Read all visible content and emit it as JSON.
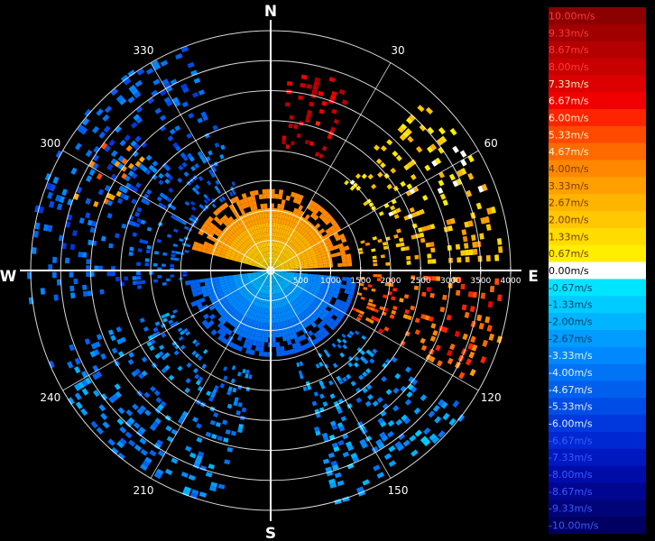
{
  "chart_data": {
    "type": "polar-heatmap",
    "cardinals": {
      "north": "N",
      "east": "E",
      "south": "S",
      "west": "W"
    },
    "azimuth_labels": [
      "30",
      "60",
      "120",
      "150",
      "210",
      "240",
      "300",
      "330"
    ],
    "azimuth_values": [
      30,
      60,
      120,
      150,
      210,
      240,
      300,
      330
    ],
    "range_rings": [
      500,
      1000,
      1500,
      2000,
      2500,
      3000,
      3500,
      4000
    ],
    "range_labels": [
      "500",
      "1000",
      "1500",
      "2000",
      "2500",
      "3000",
      "3500",
      "4000"
    ],
    "range_max": 4000,
    "colorbar": {
      "min": -10.0,
      "max": 10.0,
      "labels": [
        "10.00m/s",
        "9.33m/s",
        "8.67m/s",
        "8.00m/s",
        "7.33m/s",
        "6.67m/s",
        "6.00m/s",
        "5.33m/s",
        "4.67m/s",
        "4.00m/s",
        "3.33m/s",
        "2.67m/s",
        "2.00m/s",
        "1.33m/s",
        "0.67m/s",
        "0.00m/s",
        "-0.67m/s",
        "-1.33m/s",
        "-2.00m/s",
        "-2.67m/s",
        "-3.33m/s",
        "-4.00m/s",
        "-4.67m/s",
        "-5.33m/s",
        "-6.00m/s",
        "-6.67m/s",
        "-7.33m/s",
        "-8.00m/s",
        "-8.67m/s",
        "-9.33m/s",
        "-10.00m/s"
      ],
      "colors": [
        "#8b0000",
        "#a00000",
        "#b50000",
        "#c80000",
        "#dc0000",
        "#f00000",
        "#ff2400",
        "#ff4a00",
        "#ff6a00",
        "#ff8800",
        "#ffa000",
        "#ffb400",
        "#ffc800",
        "#ffdc00",
        "#ffee00",
        "#ffffff",
        "#00e5ff",
        "#00ccff",
        "#00b4ff",
        "#009cff",
        "#0088ff",
        "#0074f5",
        "#0060ee",
        "#004ce6",
        "#0038dd",
        "#0028d2",
        "#0018c0",
        "#000ca8",
        "#000690",
        "#000478",
        "#000060"
      ]
    },
    "echo_regions": [
      {
        "az_from": -75,
        "az_to": 85,
        "r_from": 0,
        "r_to": 1300,
        "value": 3.5
      },
      {
        "az_from": 95,
        "az_to": 262,
        "r_from": 0,
        "r_to": 1380,
        "value": -4.0
      },
      {
        "az_from": 5,
        "az_to": 24,
        "r_from": 2050,
        "r_to": 3350,
        "value": 7.8
      },
      {
        "az_from": 40,
        "az_to": 70,
        "r_from": 1900,
        "r_to": 3800,
        "value": 1.5
      },
      {
        "az_from": 72,
        "az_to": 88,
        "r_from": 1500,
        "r_to": 4000,
        "value": 2.5
      },
      {
        "az_from": 92,
        "az_to": 120,
        "r_from": 1500,
        "r_to": 4000,
        "value": 5.0
      },
      {
        "az_from": 125,
        "az_to": 165,
        "r_from": 1600,
        "r_to": 4000,
        "value": -3.0
      },
      {
        "az_from": 190,
        "az_to": 250,
        "r_from": 1700,
        "r_to": 4000,
        "value": -3.5
      },
      {
        "az_from": 290,
        "az_to": 312,
        "r_from": 2800,
        "r_to": 3500,
        "value": 4.2
      },
      {
        "az_from": 262,
        "az_to": 340,
        "r_from": 1400,
        "r_to": 4000,
        "value": -4.5
      }
    ]
  }
}
